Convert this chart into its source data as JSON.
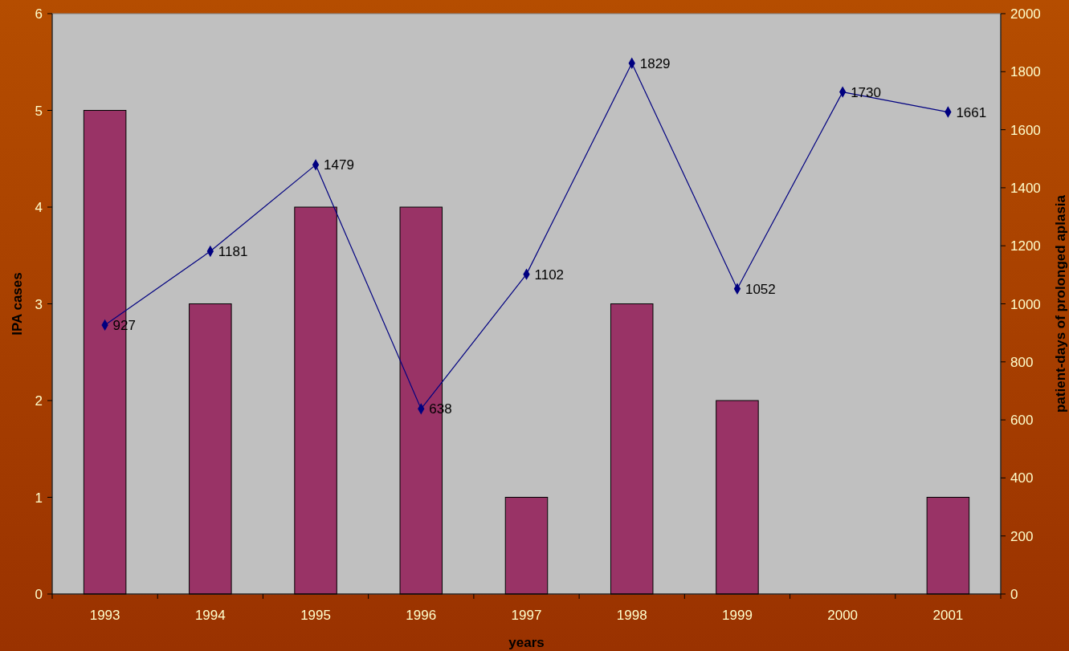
{
  "chart_data": {
    "type": "bar",
    "xlabel": "years",
    "ylabel": "IPA cases",
    "y2label": "patient-days of prolonged aplasia",
    "categories": [
      "1993",
      "1994",
      "1995",
      "1996",
      "1997",
      "1998",
      "1999",
      "2000",
      "2001"
    ],
    "series": [
      {
        "color": "#993366",
        "values": [
          5,
          3,
          4,
          4,
          1,
          3,
          2,
          0,
          1
        ]
      },
      {
        "type": "line",
        "axis": "y2",
        "color": "#000080",
        "marker": "diamond",
        "values": [
          927,
          1181,
          1479,
          638,
          1102,
          1829,
          1052,
          1730,
          1661
        ],
        "value_labels": [
          "927",
          "1181",
          "1479",
          "638",
          "1102",
          "1829",
          "1052",
          "1730",
          "1661"
        ]
      }
    ],
    "ylim": [
      0,
      6
    ],
    "yticks": [
      0,
      1,
      2,
      3,
      4,
      5,
      6
    ],
    "y2lim": [
      0,
      2000
    ],
    "y2ticks": [
      0,
      200,
      400,
      600,
      800,
      1000,
      1200,
      1400,
      1600,
      1800,
      2000
    ],
    "grid": false
  }
}
